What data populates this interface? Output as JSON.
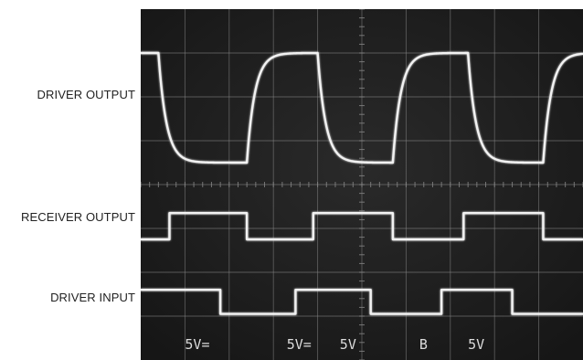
{
  "chart_data": {
    "type": "line",
    "title": "",
    "xlabel": "",
    "ylabel": "",
    "grid": true,
    "x": [
      0,
      0.5,
      1,
      1.5,
      2,
      2.5,
      3,
      3.5,
      4,
      4.5,
      5,
      5.5,
      6,
      6.5,
      7,
      7.5,
      8,
      8.5,
      9,
      9.5,
      10
    ],
    "xlim": [
      0,
      10
    ],
    "series": [
      {
        "name": "DRIVER OUTPUT",
        "waveform": "smoothed square",
        "high_div": 7.0,
        "low_div": 4.5,
        "transitions": [
          [
            0.4,
            "fall"
          ],
          [
            2.4,
            "rise"
          ],
          [
            4.0,
            "fall"
          ],
          [
            5.7,
            "rise"
          ],
          [
            7.4,
            "fall"
          ],
          [
            9.1,
            "rise"
          ]
        ]
      },
      {
        "name": "RECEIVER OUTPUT",
        "waveform": "square",
        "high_div": 3.35,
        "low_div": 2.75,
        "transitions": [
          [
            0.65,
            "rise"
          ],
          [
            2.4,
            "fall"
          ],
          [
            3.9,
            "rise"
          ],
          [
            5.7,
            "fall"
          ],
          [
            7.3,
            "rise"
          ],
          [
            9.1,
            "fall"
          ]
        ]
      },
      {
        "name": "DRIVER INPUT",
        "waveform": "square",
        "high_div": 1.6,
        "low_div": 1.05,
        "transitions": [
          [
            1.8,
            "fall"
          ],
          [
            3.5,
            "rise"
          ],
          [
            5.2,
            "fall"
          ],
          [
            6.8,
            "rise"
          ],
          [
            8.4,
            "fall"
          ]
        ]
      }
    ],
    "scale_labels": [
      "5V=",
      "5V=",
      "5V",
      "B",
      "5V"
    ],
    "colors": {
      "screen": "#1f1f1f",
      "grid": "#8a8a8a",
      "trace": "#f2f2f2",
      "scale": "#dcdcdc"
    }
  }
}
